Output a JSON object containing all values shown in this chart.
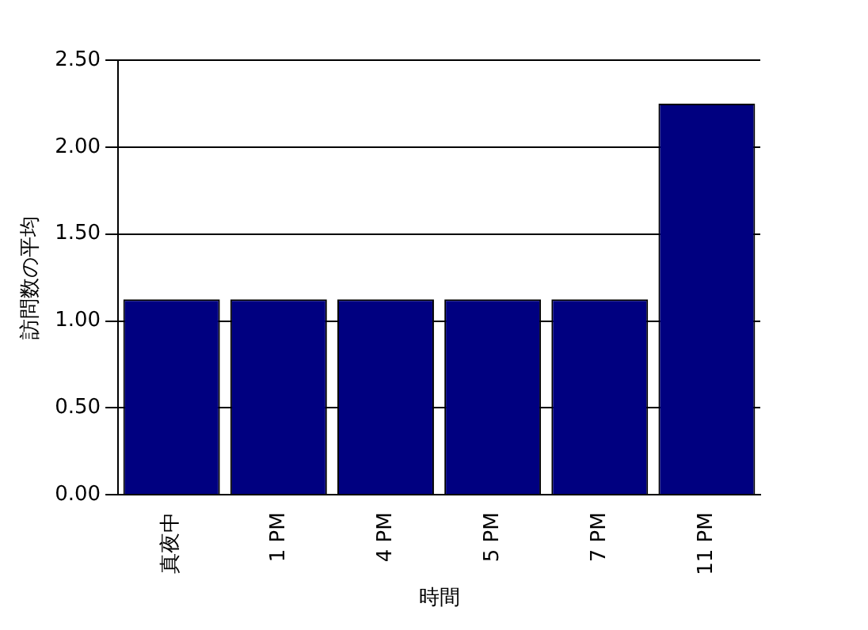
{
  "chart_data": {
    "type": "bar",
    "xlabel": "時間",
    "ylabel": "訪問数の平均",
    "categories": [
      "真夜中",
      "1 PM",
      "4 PM",
      "5 PM",
      "7 PM",
      "11 PM"
    ],
    "values": [
      1.125,
      1.125,
      1.125,
      1.125,
      1.125,
      2.25
    ],
    "color": "#000080",
    "ylim": [
      0,
      2.5
    ],
    "yticks": [
      {
        "value": 0,
        "label": "0.00"
      },
      {
        "value": 0.5,
        "label": "0.50"
      },
      {
        "value": 1,
        "label": "1.00"
      },
      {
        "value": 1.5,
        "label": "1.50"
      },
      {
        "value": 2,
        "label": "2.00"
      },
      {
        "value": 2.5,
        "label": "2.50"
      }
    ],
    "grid": "y"
  }
}
